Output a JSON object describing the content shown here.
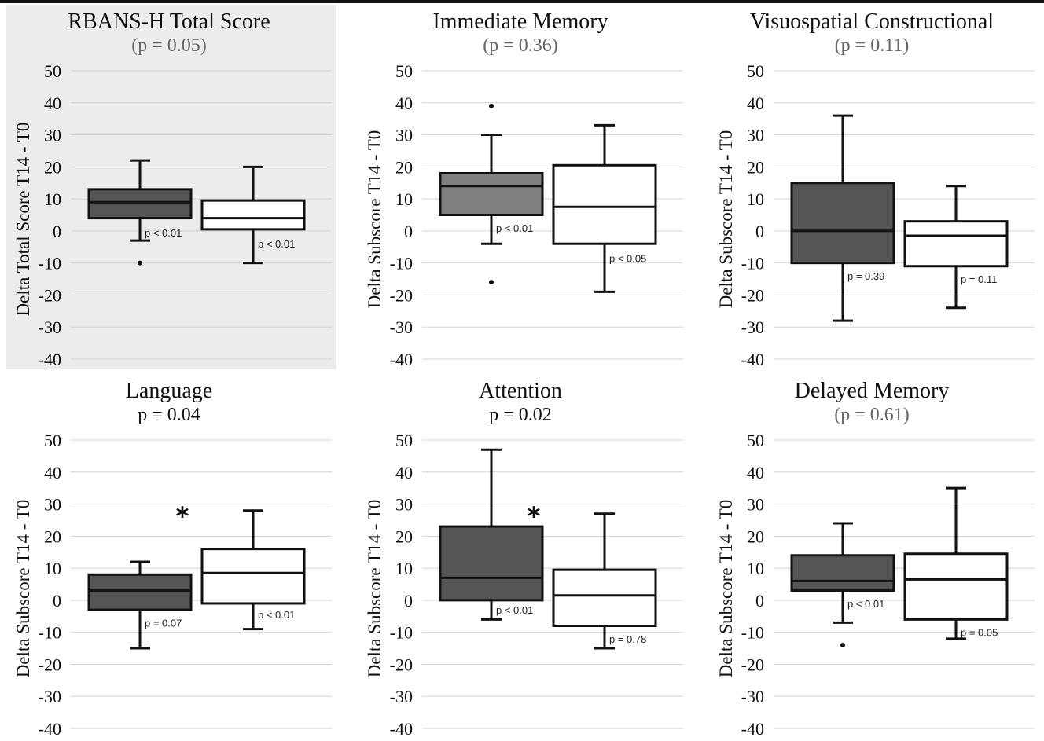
{
  "chart_data": [
    {
      "type": "box",
      "title": "RBANS-H Total Score",
      "subtitle": "(p = 0.05)",
      "subtitle_style": "grey",
      "highlight_background": "#ececec",
      "ylabel": "Delta Total Score T14 - T0",
      "ylim": [
        -40,
        50
      ],
      "yticks": [
        50,
        40,
        30,
        20,
        10,
        0,
        -10,
        -20,
        -30,
        -40
      ],
      "grid": true,
      "series": [
        {
          "fill": "#555555",
          "whisker_low": -3,
          "q1": 4,
          "median": 9,
          "q3": 13,
          "whisker_high": 22,
          "outliers": [
            -10
          ],
          "p_label": "p < 0.01",
          "p_label_y": -0.5
        },
        {
          "fill": "#ffffff",
          "whisker_low": -10,
          "q1": 0.5,
          "median": 4,
          "q3": 9.5,
          "whisker_high": 20,
          "outliers": [],
          "p_label": "p < 0.01",
          "p_label_y": -4
        }
      ],
      "significance_marker": ""
    },
    {
      "type": "box",
      "title": "Immediate Memory",
      "subtitle": "(p = 0.36)",
      "subtitle_style": "grey",
      "ylabel": "Delta Subscore T14 - T0",
      "ylim": [
        -40,
        50
      ],
      "yticks": [
        50,
        40,
        30,
        20,
        10,
        0,
        -10,
        -20,
        -30,
        -40
      ],
      "grid": true,
      "series": [
        {
          "fill": "#808080",
          "whisker_low": -4,
          "q1": 5,
          "median": 14,
          "q3": 18,
          "whisker_high": 30,
          "outliers": [
            39,
            -16
          ],
          "p_label": "p < 0.01",
          "p_label_y": 1
        },
        {
          "fill": "#ffffff",
          "whisker_low": -19,
          "q1": -4,
          "median": 7.5,
          "q3": 20.5,
          "whisker_high": 33,
          "outliers": [],
          "p_label": "p < 0.05",
          "p_label_y": -8.5
        }
      ],
      "significance_marker": ""
    },
    {
      "type": "box",
      "title": "Visuospatial Constructional",
      "subtitle": "(p = 0.11)",
      "subtitle_style": "grey",
      "ylabel": "Delta Subscore T14 - T0",
      "ylim": [
        -40,
        50
      ],
      "yticks": [
        50,
        40,
        30,
        20,
        10,
        0,
        -10,
        -20,
        -30,
        -40
      ],
      "grid": true,
      "series": [
        {
          "fill": "#555555",
          "whisker_low": -28,
          "q1": -10,
          "median": 0,
          "q3": 15,
          "whisker_high": 36,
          "outliers": [],
          "p_label": "p = 0.39",
          "p_label_y": -14
        },
        {
          "fill": "#ffffff",
          "whisker_low": -24,
          "q1": -11,
          "median": -1.5,
          "q3": 3,
          "whisker_high": 14,
          "outliers": [],
          "p_label": "p = 0.11",
          "p_label_y": -15
        }
      ],
      "significance_marker": ""
    },
    {
      "type": "box",
      "title": "Language",
      "subtitle": "p = 0.04",
      "subtitle_style": "dark",
      "ylabel": "Delta Subscore T14 - T0",
      "ylim": [
        -40,
        50
      ],
      "yticks": [
        50,
        40,
        30,
        20,
        10,
        0,
        -10,
        -20,
        -30,
        -40
      ],
      "grid": true,
      "series": [
        {
          "fill": "#555555",
          "whisker_low": -15,
          "q1": -3,
          "median": 3,
          "q3": 8,
          "whisker_high": 12,
          "outliers": [],
          "p_label": "p = 0.07",
          "p_label_y": -7
        },
        {
          "fill": "#ffffff",
          "whisker_low": -9,
          "q1": -1,
          "median": 8.5,
          "q3": 16,
          "whisker_high": 28,
          "outliers": [],
          "p_label": "p < 0.01",
          "p_label_y": -4.5
        }
      ],
      "significance_marker": "*"
    },
    {
      "type": "box",
      "title": "Attention",
      "subtitle": "p = 0.02",
      "subtitle_style": "dark",
      "ylabel": "Delta Subscore T14 - T0",
      "ylim": [
        -40,
        50
      ],
      "yticks": [
        50,
        40,
        30,
        20,
        10,
        0,
        -10,
        -20,
        -30,
        -40
      ],
      "grid": true,
      "series": [
        {
          "fill": "#555555",
          "whisker_low": -6,
          "q1": 0,
          "median": 7,
          "q3": 23,
          "whisker_high": 47,
          "outliers": [],
          "p_label": "p < 0.01",
          "p_label_y": -3
        },
        {
          "fill": "#ffffff",
          "whisker_low": -15,
          "q1": -8,
          "median": 1.5,
          "q3": 9.5,
          "whisker_high": 27,
          "outliers": [],
          "p_label": "p = 0.78",
          "p_label_y": -12
        }
      ],
      "significance_marker": "*"
    },
    {
      "type": "box",
      "title": "Delayed Memory",
      "subtitle": "(p = 0.61)",
      "subtitle_style": "grey",
      "ylabel": "Delta Subscore T14 - T0",
      "ylim": [
        -40,
        50
      ],
      "yticks": [
        50,
        40,
        30,
        20,
        10,
        0,
        -10,
        -20,
        -30,
        -40
      ],
      "grid": true,
      "series": [
        {
          "fill": "#555555",
          "whisker_low": -7,
          "q1": 3,
          "median": 6,
          "q3": 14,
          "whisker_high": 24,
          "outliers": [
            -14
          ],
          "p_label": "p < 0.01",
          "p_label_y": -1
        },
        {
          "fill": "#ffffff",
          "whisker_low": -12,
          "q1": -6,
          "median": 6.5,
          "q3": 14.5,
          "whisker_high": 35,
          "outliers": [],
          "p_label": "p = 0.05",
          "p_label_y": -10
        }
      ],
      "significance_marker": ""
    }
  ]
}
